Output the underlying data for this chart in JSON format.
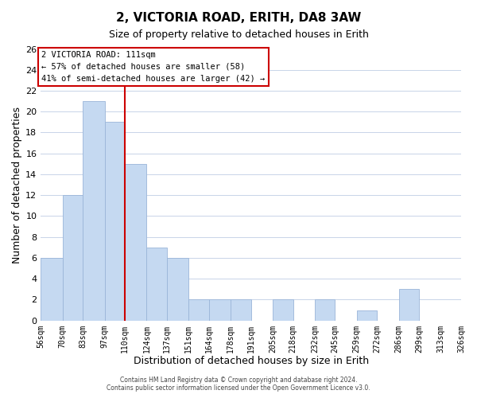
{
  "title": "2, VICTORIA ROAD, ERITH, DA8 3AW",
  "subtitle": "Size of property relative to detached houses in Erith",
  "xlabel": "Distribution of detached houses by size in Erith",
  "ylabel": "Number of detached properties",
  "bin_edges": [
    56,
    70,
    83,
    97,
    110,
    124,
    137,
    151,
    164,
    178,
    191,
    205,
    218,
    232,
    245,
    259,
    272,
    286,
    299,
    313,
    326
  ],
  "bar_heights": [
    6,
    12,
    21,
    19,
    15,
    7,
    6,
    2,
    2,
    2,
    0,
    2,
    0,
    2,
    0,
    1,
    0,
    3,
    0,
    0
  ],
  "bar_color": "#c5d9f1",
  "bar_edgecolor": "#9ab5d8",
  "vline_x": 110,
  "vline_color": "#cc0000",
  "ylim": [
    0,
    26
  ],
  "yticks": [
    0,
    2,
    4,
    6,
    8,
    10,
    12,
    14,
    16,
    18,
    20,
    22,
    24,
    26
  ],
  "annotation_title": "2 VICTORIA ROAD: 111sqm",
  "annotation_line1": "← 57% of detached houses are smaller (58)",
  "annotation_line2": "41% of semi-detached houses are larger (42) →",
  "annotation_box_color": "#ffffff",
  "annotation_box_edgecolor": "#cc0000",
  "footer_line1": "Contains HM Land Registry data © Crown copyright and database right 2024.",
  "footer_line2": "Contains public sector information licensed under the Open Government Licence v3.0.",
  "background_color": "#ffffff",
  "grid_color": "#c8d4e8"
}
